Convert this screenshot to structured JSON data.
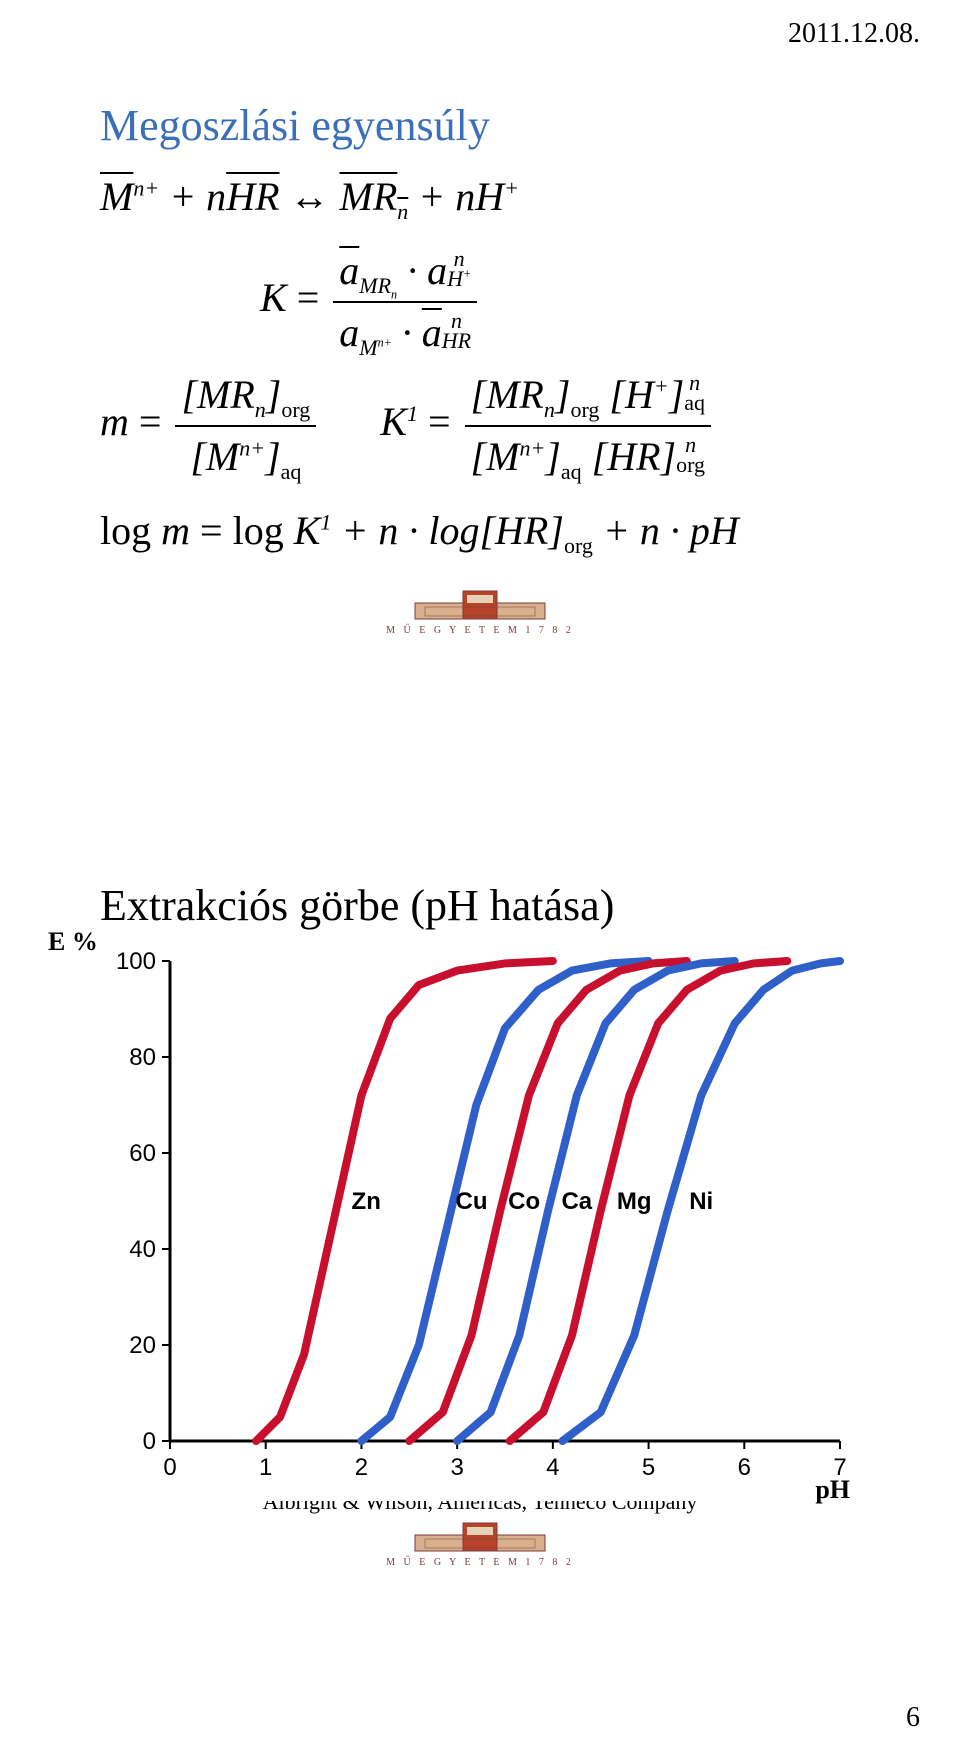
{
  "meta": {
    "date": "2011.12.08.",
    "page_number": "6"
  },
  "slide1": {
    "title": "Megoszlási egyensúly",
    "title_color": "#3b6fb8",
    "logo_text": "M Ű E G Y E T E M 1 7 8 2",
    "equations": {
      "reaction_lhs1": "M",
      "reaction_sup1": "n+",
      "reaction_plus": " + n",
      "reaction_HR": "HR",
      "reaction_arrow": " ↔ ",
      "reaction_MRn": "MR",
      "reaction_sub_n": "n",
      "reaction_nH": " + nH",
      "reaction_Hsup": "+",
      "K": "K",
      "eq": " = ",
      "a": "a",
      "m": "m",
      "K1": "K",
      "sup1": "1",
      "MRn_br": "[MR",
      "close_org": "]",
      "org": "org",
      "aq": "aq",
      "Mn_br": "[M",
      "nplus": "n+",
      "Hplus_br": "[H",
      "plus": "+",
      "HR_br": "[HR]",
      "n": "n",
      "logline": "log m = log K",
      "logline2": " + n · log[HR]",
      "logline3": " + n · pH"
    }
  },
  "slide2": {
    "title": "Extrakciós görbe (pH hatása)",
    "caption": "Albright & Wilson, Americas, Tenneco Company",
    "logo_text": "M Ű E G Y E T E M 1 7 8 2",
    "chart": {
      "type": "line",
      "xlabel": "pH",
      "ylabel": "E %",
      "label_fontsize": 26,
      "background_color": "#ffffff",
      "axis_color": "#000000",
      "xlim": [
        0,
        7
      ],
      "ylim": [
        0,
        100
      ],
      "xtick_step": 1,
      "ytick_step": 20,
      "tick_fontsize": 24,
      "line_width": 8,
      "series": [
        {
          "name": "Zn",
          "color": "#c8102e",
          "label_x": 2.05,
          "points": [
            [
              0.9,
              0
            ],
            [
              1.15,
              5
            ],
            [
              1.4,
              18
            ],
            [
              1.7,
              45
            ],
            [
              2.0,
              72
            ],
            [
              2.3,
              88
            ],
            [
              2.6,
              95
            ],
            [
              3.0,
              98
            ],
            [
              3.5,
              99.5
            ],
            [
              4.0,
              100
            ]
          ]
        },
        {
          "name": "Cu",
          "color": "#2f5fc9",
          "label_x": 3.15,
          "points": [
            [
              2.0,
              0
            ],
            [
              2.3,
              5
            ],
            [
              2.6,
              20
            ],
            [
              2.9,
              45
            ],
            [
              3.2,
              70
            ],
            [
              3.5,
              86
            ],
            [
              3.85,
              94
            ],
            [
              4.2,
              98
            ],
            [
              4.6,
              99.5
            ],
            [
              5.0,
              100
            ]
          ]
        },
        {
          "name": "Co",
          "color": "#c8102e",
          "label_x": 3.7,
          "points": [
            [
              2.5,
              0
            ],
            [
              2.85,
              6
            ],
            [
              3.15,
              22
            ],
            [
              3.45,
              48
            ],
            [
              3.75,
              72
            ],
            [
              4.05,
              87
            ],
            [
              4.35,
              94
            ],
            [
              4.7,
              98
            ],
            [
              5.05,
              99.5
            ],
            [
              5.4,
              100
            ]
          ]
        },
        {
          "name": "Ca",
          "color": "#2f5fc9",
          "label_x": 4.25,
          "points": [
            [
              3.0,
              0
            ],
            [
              3.35,
              6
            ],
            [
              3.65,
              22
            ],
            [
              3.95,
              48
            ],
            [
              4.25,
              72
            ],
            [
              4.55,
              87
            ],
            [
              4.85,
              94
            ],
            [
              5.2,
              98
            ],
            [
              5.55,
              99.5
            ],
            [
              5.9,
              100
            ]
          ]
        },
        {
          "name": "Mg",
          "color": "#c8102e",
          "label_x": 4.85,
          "points": [
            [
              3.55,
              0
            ],
            [
              3.9,
              6
            ],
            [
              4.2,
              22
            ],
            [
              4.5,
              48
            ],
            [
              4.8,
              72
            ],
            [
              5.1,
              87
            ],
            [
              5.4,
              94
            ],
            [
              5.75,
              98
            ],
            [
              6.1,
              99.5
            ],
            [
              6.45,
              100
            ]
          ]
        },
        {
          "name": "Ni",
          "color": "#2f5fc9",
          "label_x": 5.55,
          "points": [
            [
              4.1,
              0
            ],
            [
              4.5,
              6
            ],
            [
              4.85,
              22
            ],
            [
              5.2,
              48
            ],
            [
              5.55,
              72
            ],
            [
              5.9,
              87
            ],
            [
              6.2,
              94
            ],
            [
              6.5,
              98
            ],
            [
              6.8,
              99.5
            ],
            [
              7.0,
              100
            ]
          ]
        }
      ]
    }
  }
}
